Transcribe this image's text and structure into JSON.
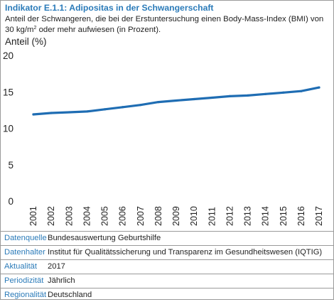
{
  "header": {
    "title": "Indikator E.1.1: Adipositas in der Schwangerschaft",
    "subtitle_line1": "Anteil der Schwangeren, die bei der Erstuntersuchung einen Body-Mass-Index (BMI) von",
    "subtitle_line2_pre": "30 kg/m",
    "subtitle_sup": "2",
    "subtitle_line2_post": " oder mehr aufwiesen (in Prozent)."
  },
  "chart_data": {
    "type": "line",
    "ylabel": "Anteil (%)",
    "xlabel": "",
    "ylim": [
      0,
      20
    ],
    "yticks": [
      0,
      5,
      10,
      15,
      20
    ],
    "grid": false,
    "line_color": "#1f6db3",
    "categories": [
      "2001",
      "2002",
      "2003",
      "2004",
      "2005",
      "2006",
      "2007",
      "2008",
      "2009",
      "2010",
      "2011",
      "2012",
      "2013",
      "2014",
      "2015",
      "2016",
      "2017"
    ],
    "series": [
      {
        "values": [
          11.9,
          12.1,
          12.2,
          12.3,
          12.6,
          12.9,
          13.2,
          13.6,
          13.8,
          14.0,
          14.2,
          14.4,
          14.5,
          14.7,
          14.9,
          15.1,
          15.6
        ]
      }
    ]
  },
  "meta": [
    {
      "key": "Datenquelle",
      "value": "Bundesauswertung Geburtshilfe"
    },
    {
      "key": "Datenhalter",
      "value": "Institut für Qualitätssicherung und Transparenz im Gesundheitswesen (IQTIG)"
    },
    {
      "key": "Aktualität",
      "value": "2017"
    },
    {
      "key": "Periodizität",
      "value": "Jährlich"
    },
    {
      "key": "Regionalität",
      "value": "Deutschland"
    }
  ]
}
